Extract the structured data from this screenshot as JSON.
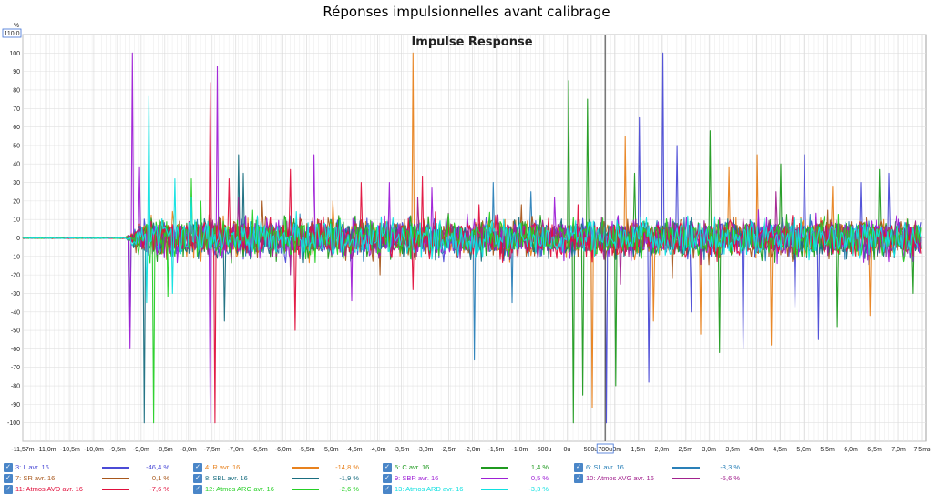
{
  "window_title": "Réponses impulsionnelles avant calibrage",
  "chart_data": {
    "type": "line",
    "title": "Impulse Response",
    "y_unit": "%",
    "y_max_marker": "110,0",
    "cursor_label": "780u",
    "x_ticks": [
      "-11,57m",
      "-11,0m",
      "-10,5m",
      "-10,0m",
      "-9,5m",
      "-9,0m",
      "-8,5m",
      "-8,0m",
      "-7,5m",
      "-7,0m",
      "-6,5m",
      "-6,0m",
      "-5,5m",
      "-5,0m",
      "-4,5m",
      "-4,0m",
      "-3,5m",
      "-3,0m",
      "-2,5m",
      "-2,0m",
      "-1,5m",
      "-1,0m",
      "-500u",
      "0u",
      "500u",
      "1,0m",
      "1,5m",
      "2,0m",
      "2,5m",
      "3,0m",
      "3,5m",
      "4,0m",
      "4,5m",
      "5,0m",
      "5,5m",
      "6,0m",
      "6,5m",
      "7,0m",
      "7,5ms"
    ],
    "y_ticks": [
      "100",
      "90",
      "80",
      "70",
      "60",
      "50",
      "40",
      "30",
      "20",
      "10",
      "0",
      "-10",
      "-20",
      "-30",
      "-40",
      "-50",
      "-60",
      "-70",
      "-80",
      "-90",
      "-100"
    ],
    "x_range_ms": [
      -11.57,
      7.5
    ],
    "ylim": [
      -110,
      110
    ],
    "grid": true,
    "legend_position": "bottom",
    "series": [
      {
        "name": "3: L avr. 16",
        "value": "-46,4 %",
        "color": "#4b4bd6",
        "peaks": [
          [
            2.0,
            100
          ],
          [
            0.8,
            -100
          ],
          [
            1.5,
            65
          ],
          [
            1.7,
            -78
          ],
          [
            2.3,
            50
          ],
          [
            5.0,
            45
          ],
          [
            2.6,
            -40
          ],
          [
            6.8,
            35
          ],
          [
            3.7,
            -60
          ],
          [
            5.3,
            -55
          ],
          [
            4.8,
            -38
          ],
          [
            6.2,
            30
          ]
        ]
      },
      {
        "name": "4: R avr. 16",
        "value": "-14,8 %",
        "color": "#e8821e",
        "peaks": [
          [
            -3.3,
            100
          ],
          [
            0.5,
            -92
          ],
          [
            1.2,
            55
          ],
          [
            2.8,
            -52
          ],
          [
            3.4,
            38
          ],
          [
            4.3,
            -58
          ],
          [
            5.6,
            28
          ],
          [
            6.4,
            -42
          ],
          [
            4.0,
            45
          ],
          [
            7.5,
            20
          ],
          [
            1.8,
            -45
          ],
          [
            -5.0,
            20
          ]
        ]
      },
      {
        "name": "5: C avr. 16",
        "value": "1,4 %",
        "color": "#1f9a1f",
        "peaks": [
          [
            0.0,
            85
          ],
          [
            0.1,
            -100
          ],
          [
            0.4,
            75
          ],
          [
            0.3,
            -85
          ],
          [
            1.0,
            -80
          ],
          [
            1.4,
            35
          ],
          [
            3.0,
            58
          ],
          [
            3.2,
            -62
          ],
          [
            4.5,
            40
          ],
          [
            5.7,
            -48
          ],
          [
            6.6,
            37
          ],
          [
            7.3,
            -30
          ]
        ]
      },
      {
        "name": "6: SL avr. 16",
        "value": "-3,3 %",
        "color": "#2a80b8",
        "peaks": [
          [
            -2.0,
            100
          ],
          [
            -2.0,
            -66
          ],
          [
            -1.6,
            30
          ],
          [
            -1.2,
            -35
          ],
          [
            -0.8,
            25
          ]
        ]
      },
      {
        "name": "7: SR avr. 16",
        "value": "0,1 %",
        "color": "#a8571c",
        "peaks": [
          [
            -6.5,
            20
          ],
          [
            -4.0,
            -20
          ],
          [
            -1.0,
            18
          ],
          [
            2.2,
            -22
          ],
          [
            5.5,
            15
          ]
        ]
      },
      {
        "name": "8: SBL avr. 16",
        "value": "-1,9 %",
        "color": "#1a6e80",
        "peaks": [
          [
            -9.0,
            62
          ],
          [
            -9.0,
            -100
          ],
          [
            -7.0,
            45
          ],
          [
            -7.3,
            -45
          ],
          [
            -6.9,
            35
          ],
          [
            -9.3,
            -48
          ]
        ]
      },
      {
        "name": "9: SBR avr. 16",
        "value": "0,5 %",
        "color": "#9e1fd6",
        "peaks": [
          [
            -9.25,
            100
          ],
          [
            -9.3,
            -60
          ],
          [
            -7.45,
            93
          ],
          [
            -7.6,
            -100
          ],
          [
            -9.1,
            38
          ],
          [
            -5.4,
            45
          ],
          [
            -4.6,
            -34
          ],
          [
            -3.8,
            30
          ],
          [
            -2.9,
            27
          ],
          [
            -0.3,
            22
          ]
        ]
      },
      {
        "name": "10: Atmos AVG avr. 16",
        "value": "-5,6 %",
        "color": "#a2228e",
        "peaks": [
          [
            -7.0,
            22
          ],
          [
            -5.9,
            -20
          ],
          [
            -3.2,
            22
          ],
          [
            1.1,
            -25
          ],
          [
            4.4,
            25
          ]
        ]
      },
      {
        "name": "11: Atmos AVD avr. 16",
        "value": "-7,6 %",
        "color": "#e0103c",
        "peaks": [
          [
            -7.6,
            84
          ],
          [
            -7.5,
            -100
          ],
          [
            -5.9,
            37
          ],
          [
            -5.8,
            -50
          ],
          [
            -4.4,
            30
          ],
          [
            -3.1,
            33
          ],
          [
            -3.3,
            -28
          ],
          [
            -1.9,
            18
          ],
          [
            0.2,
            18
          ],
          [
            -7.2,
            32
          ]
        ]
      },
      {
        "name": "12: Atmos ARG avr. 16",
        "value": "-2,6 %",
        "color": "#26cf26",
        "peaks": [
          [
            -8.8,
            42
          ],
          [
            -8.8,
            -100
          ],
          [
            -8.0,
            32
          ],
          [
            -8.5,
            -32
          ],
          [
            -7.8,
            20
          ],
          [
            -6.7,
            15
          ]
        ]
      },
      {
        "name": "13: Atmos ARD avr. 16",
        "value": "-3,3 %",
        "color": "#10e0e0",
        "peaks": [
          [
            -8.9,
            77
          ],
          [
            -8.95,
            -35
          ],
          [
            -8.35,
            32
          ],
          [
            -8.4,
            -30
          ],
          [
            -8.0,
            22
          ],
          [
            -6.6,
            12
          ]
        ]
      }
    ]
  }
}
